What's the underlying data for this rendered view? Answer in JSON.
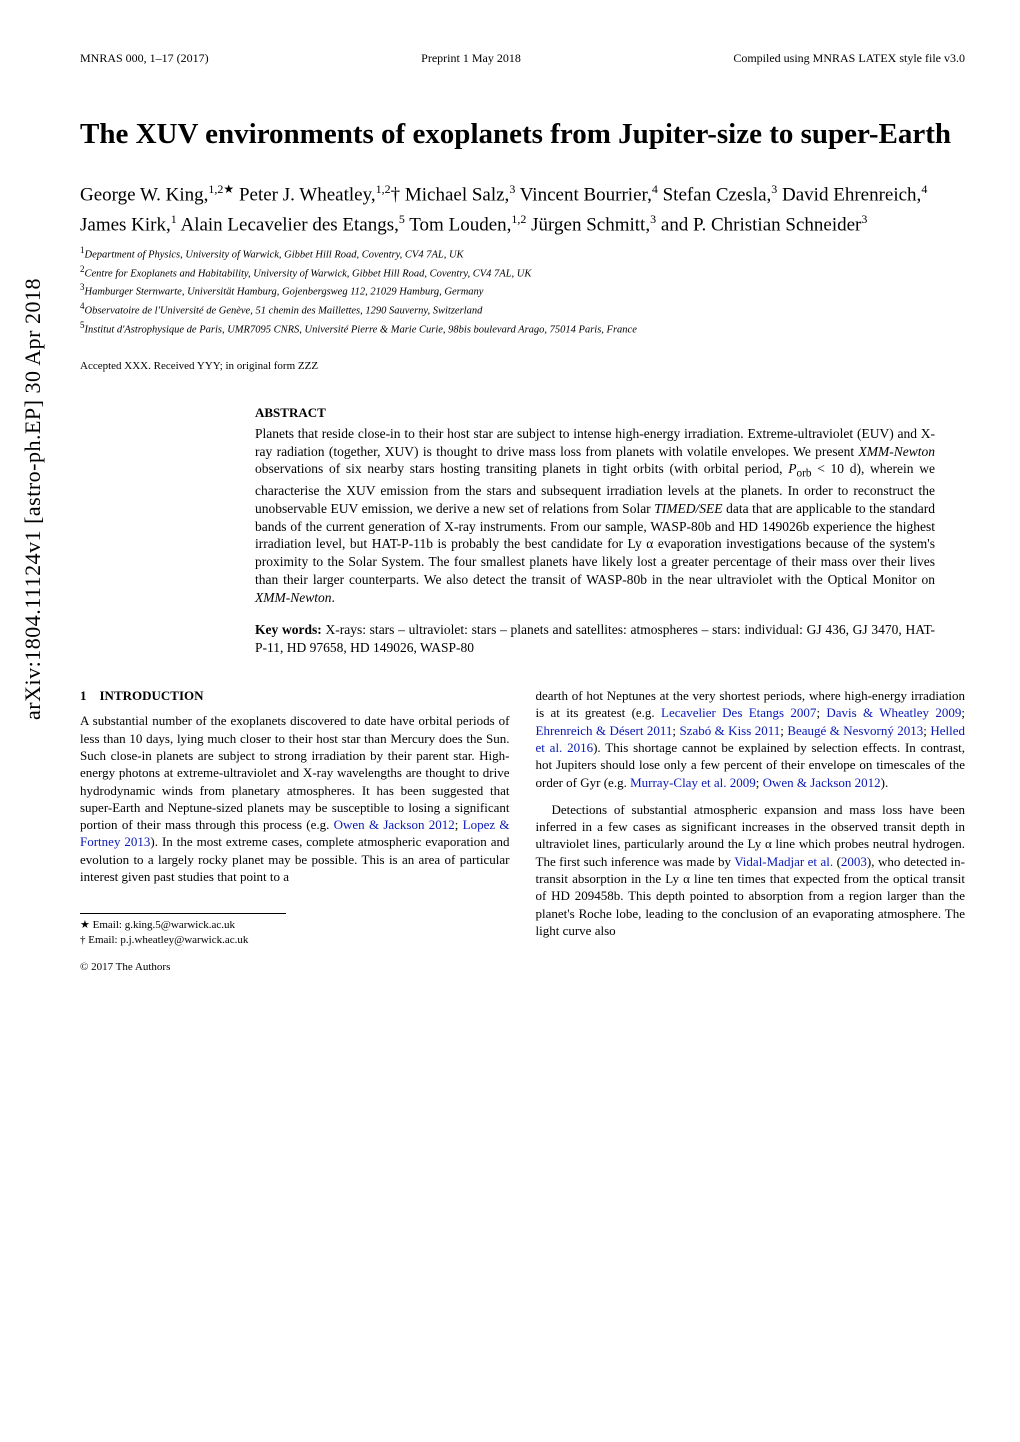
{
  "arxiv": "arXiv:1804.11124v1  [astro-ph.EP]  30 Apr 2018",
  "header": {
    "left": "MNRAS 000, 1–17 (2017)",
    "center": "Preprint 1 May 2018",
    "right": "Compiled using MNRAS LATEX style file v3.0"
  },
  "title": "The XUV environments of exoplanets from Jupiter-size to super-Earth",
  "authors_html": "George W. King,<sup>1,2★</sup> Peter J. Wheatley,<sup>1,2</sup>† Michael Salz,<sup>3</sup> Vincent Bourrier,<sup>4</sup> Stefan Czesla,<sup>3</sup> David Ehrenreich,<sup>4</sup> James Kirk,<sup>1</sup> Alain Lecavelier des Etangs,<sup>5</sup> Tom Louden,<sup>1,2</sup> Jürgen Schmitt,<sup>3</sup> and P. Christian Schneider<sup>3</sup>",
  "affiliations": [
    "Department of Physics, University of Warwick, Gibbet Hill Road, Coventry, CV4 7AL, UK",
    "Centre for Exoplanets and Habitability, University of Warwick, Gibbet Hill Road, Coventry, CV4 7AL, UK",
    "Hamburger Sternwarte, Universität Hamburg, Gojenbergsweg 112, 21029 Hamburg, Germany",
    "Observatoire de l'Université de Genève, 51 chemin des Maillettes, 1290 Sauverny, Switzerland",
    "Institut d'Astrophysique de Paris, UMR7095 CNRS, Université Pierre & Marie Curie, 98bis boulevard Arago, 75014 Paris, France"
  ],
  "accepted": "Accepted XXX. Received YYY; in original form ZZZ",
  "abstract_heading": "ABSTRACT",
  "abstract": "Planets that reside close-in to their host star are subject to intense high-energy irradiation. Extreme-ultraviolet (EUV) and X-ray radiation (together, XUV) is thought to drive mass loss from planets with volatile envelopes. We present XMM-Newton observations of six nearby stars hosting transiting planets in tight orbits (with orbital period, Porb < 10 d), wherein we characterise the XUV emission from the stars and subsequent irradiation levels at the planets. In order to reconstruct the unobservable EUV emission, we derive a new set of relations from Solar TIMED/SEE data that are applicable to the standard bands of the current generation of X-ray instruments. From our sample, WASP-80b and HD 149026b experience the highest irradiation level, but HAT-P-11b is probably the best candidate for Ly α evaporation investigations because of the system's proximity to the Solar System. The four smallest planets have likely lost a greater percentage of their mass over their lives than their larger counterparts. We also detect the transit of WASP-80b in the near ultraviolet with the Optical Monitor on XMM-Newton.",
  "keywords_label": "Key words:",
  "keywords": "X-rays: stars – ultraviolet: stars – planets and satellites: atmospheres – stars: individual: GJ 436, GJ 3470, HAT-P-11, HD 97658, HD 149026, WASP-80",
  "section1_no": "1",
  "section1_title": "INTRODUCTION",
  "col1_para1": "A substantial number of the exoplanets discovered to date have orbital periods of less than 10 days, lying much closer to their host star than Mercury does the Sun. Such close-in planets are subject to strong irradiation by their parent star. High-energy photons at extreme-ultraviolet and X-ray wavelengths are thought to drive hydrodynamic winds from planetary atmospheres. It has been suggested that super-Earth and Neptune-sized planets may be susceptible to losing a significant portion of their mass through this process (e.g. ",
  "cite_owen_jackson": "Owen & Jackson 2012",
  "cite_lopez_fortney": "Lopez & Fortney 2013",
  "col1_para1_end": "). In the most extreme cases, complete atmospheric evaporation and evolution to a largely rocky planet may be possible. This is an area of particular interest given past studies that point to a",
  "col2_para1_start": "dearth of hot Neptunes at the very shortest periods, where high-energy irradiation is at its greatest (e.g. ",
  "cite_lecav": "Lecavelier Des Etangs 2007",
  "cite_davis": "Davis & Wheatley 2009",
  "cite_ehren": "Ehrenreich & Désert 2011",
  "cite_szabo": "Szabó & Kiss 2011",
  "cite_beauge": "Beaugé & Nesvorný 2013",
  "cite_helled": "Helled et al. 2016",
  "col2_para1_mid": "). This shortage cannot be explained by selection effects. In contrast, hot Jupiters should lose only a few percent of their envelope on timescales of the order of Gyr (e.g. ",
  "cite_murray": "Murray-Clay et al. 2009",
  "cite_owen_jackson2": "Owen & Jackson 2012",
  "col2_para1_end": ").",
  "col2_para2_start": "Detections of substantial atmospheric expansion and mass loss have been inferred in a few cases as significant increases in the observed transit depth in ultraviolet lines, particularly around the Ly α line which probes neutral hydrogen. The first such inference was made by ",
  "cite_vidal": "Vidal-Madjar et al.",
  "cite_vidal_year": "2003",
  "col2_para2_end": "), who detected in-transit absorption in the Ly α line ten times that expected from the optical transit of HD 209458b. This depth pointed to absorption from a region larger than the planet's Roche lobe, leading to the conclusion of an evaporating atmosphere. The light curve also",
  "footnote_star": "★ Email: g.king.5@warwick.ac.uk",
  "footnote_dagger": "† Email: p.j.wheatley@warwick.ac.uk",
  "copyright": "© 2017 The Authors"
}
